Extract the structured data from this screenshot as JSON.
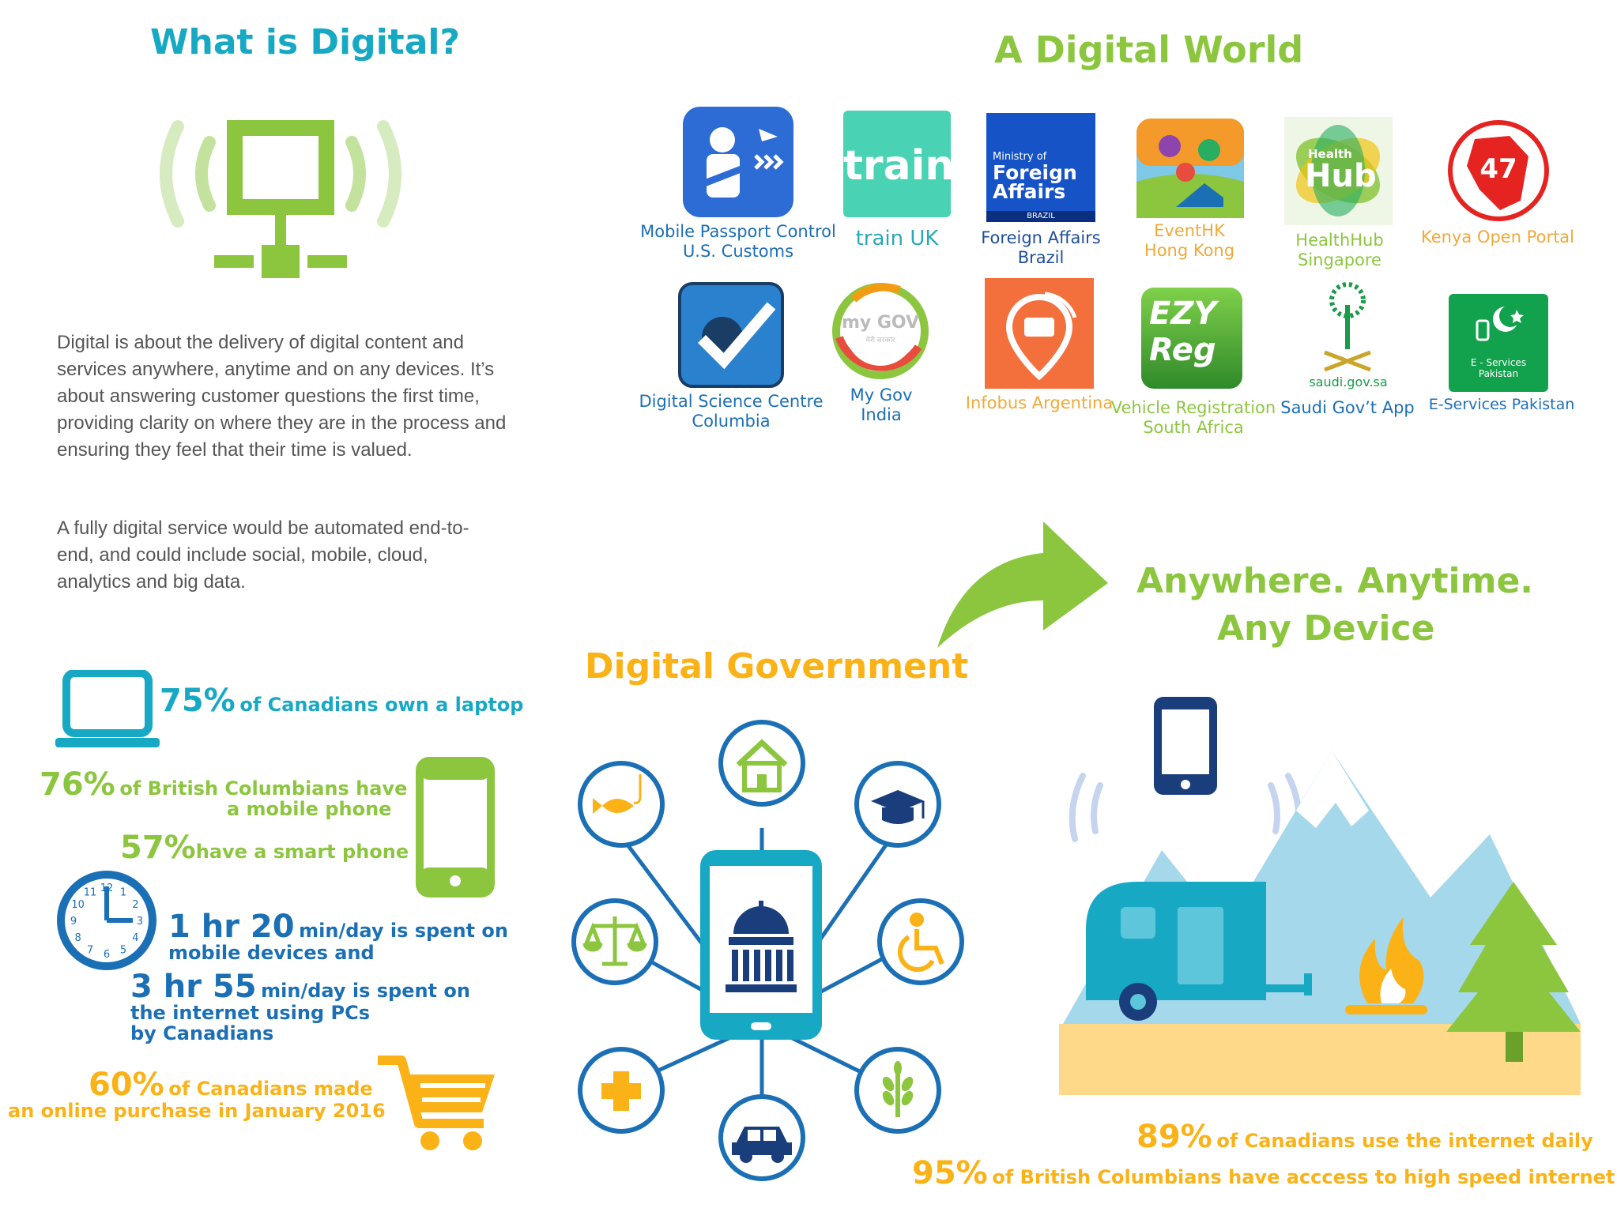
{
  "left": {
    "title": "What is Digital?",
    "paragraph1": "Digital is about the delivery of digital content and services  anywhere, anytime and on any devices. It’s about answering customer questions the first time, providing clarity on where they are in the process and ensuring they feel that their time is valued.",
    "paragraph2": "A fully digital service would be automated end-to-end, and could include social, mobile, cloud, analytics and big data."
  },
  "world": {
    "title": "A Digital World",
    "apps": [
      {
        "line1": "Mobile Passport Control",
        "line2": "U.S. Customs",
        "color": "#1b6fb5",
        "icon": "passport-officer-icon"
      },
      {
        "line1": "train UK",
        "line2": "",
        "color": "#2aa8b8",
        "icon": "train-logo",
        "logo": "train"
      },
      {
        "line1": "Foreign Affairs",
        "line2": "Brazil",
        "color": "#1d4f9c",
        "icon": "foreign-affairs-logo",
        "logo_small": "Ministry of",
        "logo_big1": "Foreign",
        "logo_big2": "Affairs",
        "logo_flag": "BRAZIL"
      },
      {
        "line1": "EventHK",
        "line2": "Hong Kong",
        "color": "#f0a93a",
        "icon": "city-map-icon"
      },
      {
        "line1": "HealthHub",
        "line2": "Singapore",
        "color": "#8cc63f",
        "icon": "healthhub-logo",
        "logo_small": "Health",
        "logo_big": "Hub"
      },
      {
        "line1": "Kenya Open Portal",
        "line2": "",
        "color": "#f0a93a",
        "icon": "kenya-map-icon",
        "logo": "47"
      },
      {
        "line1": "Digital Science Centre",
        "line2": "Columbia",
        "color": "#1b6fb5",
        "icon": "checkmark-logo"
      },
      {
        "line1": "My Gov",
        "line2": "India",
        "color": "#1b6fb5",
        "icon": "mygov-logo",
        "logo_big": "my GOV",
        "logo_small": "मेरी सरकार"
      },
      {
        "line1": "Infobus Argentina",
        "line2": "",
        "color": "#f0a93a",
        "icon": "bus-pin-icon"
      },
      {
        "line1": "Vehicle Registration",
        "line2": "South Africa",
        "color": "#8cc63f",
        "icon": "ezyreg-logo",
        "logo_big1": "EZY",
        "logo_big2": "Reg"
      },
      {
        "line1": "Saudi Gov’t App",
        "line2": "",
        "color": "#1b6fb5",
        "icon": "palm-swords-icon",
        "logo": "saudi.gov.sa"
      },
      {
        "line1": "E-Services Pakistan",
        "line2": "",
        "color": "#1b6fb5",
        "icon": "pakistan-phone-icon",
        "logo_small1": "E - Services",
        "logo_small2": "Pakistan"
      }
    ]
  },
  "stats_left": {
    "laptop": {
      "pct": "75%",
      "text": "of Canadians own a laptop"
    },
    "mobile": {
      "pct": "76%",
      "text1": "of British Columbians have",
      "text2": "a mobile phone"
    },
    "smart": {
      "pct": "57%",
      "text": "have a smart phone"
    },
    "clock_numbers": [
      "12",
      "1",
      "2",
      "3",
      "4",
      "5",
      "6",
      "7",
      "8",
      "9",
      "10",
      "11"
    ],
    "mobile_time": {
      "value": "1 hr 20",
      "text1": "min/day is spent on",
      "text2": "mobile devices and"
    },
    "pc_time": {
      "value": "3 hr 55",
      "text1": "min/day is spent on",
      "text2": "the internet using PCs",
      "text3": "by Canadians"
    },
    "purchase": {
      "pct": "60%",
      "text1": "of Canadians made",
      "text2": "an online purchase in January 2016"
    }
  },
  "government": {
    "title": "Digital Government",
    "services": [
      "house-icon",
      "graduation-cap-icon",
      "wheelchair-icon",
      "wheat-icon",
      "car-icon",
      "plus-icon",
      "scales-icon",
      "fish-hook-icon"
    ]
  },
  "anywhere": {
    "title1": "Anywhere. Anytime.",
    "title2": "Any Device",
    "internet_daily": {
      "pct": "89%",
      "text": "of Canadians use the internet daily"
    },
    "high_speed": {
      "pct": "95%",
      "text": "of British Columbians have acccess to high speed internet"
    }
  },
  "colors": {
    "teal": "#17a9c4",
    "green": "#8cc63f",
    "orange": "#fbb217",
    "blue": "#1b6fb5"
  }
}
